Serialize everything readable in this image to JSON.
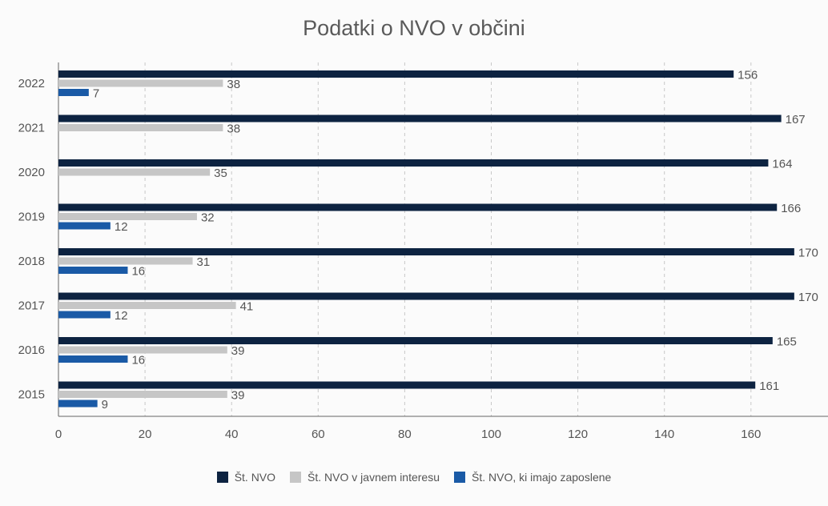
{
  "chart_data": {
    "type": "bar",
    "orientation": "horizontal",
    "title": "Podatki o NVO v občini",
    "categories": [
      "2022",
      "2021",
      "2020",
      "2019",
      "2018",
      "2017",
      "2016",
      "2015"
    ],
    "series": [
      {
        "name": "Št. NVO",
        "color": "#0d2341",
        "values": [
          156,
          167,
          164,
          166,
          170,
          170,
          165,
          161
        ]
      },
      {
        "name": "Št. NVO v javnem interesu",
        "color": "#c6c6c6",
        "values": [
          38,
          38,
          35,
          32,
          31,
          41,
          39,
          39
        ]
      },
      {
        "name": "Št. NVO, ki imajo zaposlene",
        "color": "#1a5aa6",
        "values": [
          7,
          null,
          null,
          12,
          16,
          12,
          16,
          9
        ]
      }
    ],
    "xlim": [
      0,
      180
    ],
    "xticks": [
      0,
      20,
      40,
      60,
      80,
      100,
      120,
      140,
      160
    ],
    "grid": true,
    "legend_position": "bottom"
  }
}
